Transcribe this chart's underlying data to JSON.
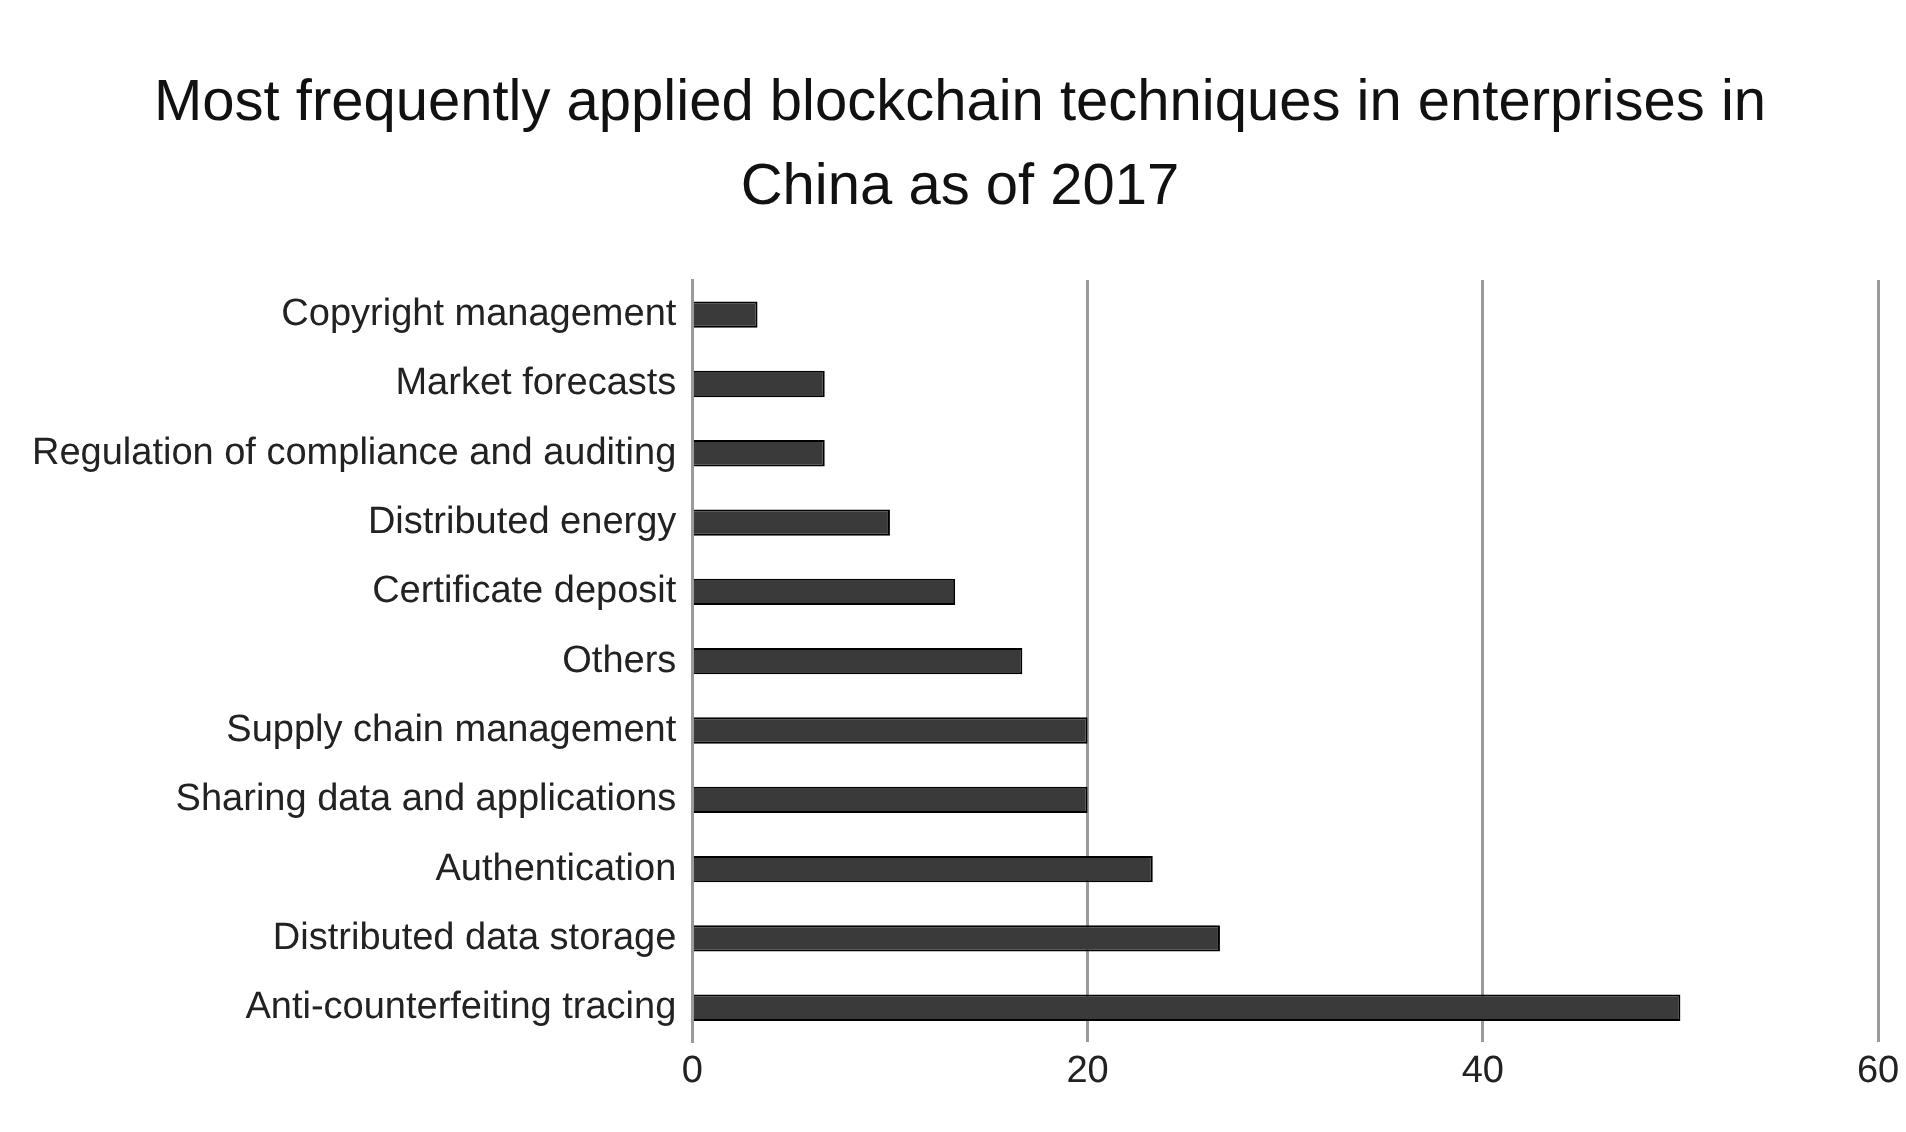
{
  "chart_data": {
    "type": "bar",
    "orientation": "horizontal",
    "title": "Most frequently applied blockchain techniques in enterprises in China as of 2017",
    "categories": [
      "Copyright management",
      "Market forecasts",
      "Regulation of compliance and auditing",
      "Distributed energy",
      "Certificate deposit",
      "Others",
      "Supply chain management",
      "Sharing data and applications",
      "Authentication",
      "Distributed data storage",
      "Anti-counterfeiting tracing"
    ],
    "values": [
      3.3,
      6.7,
      6.7,
      10,
      13.3,
      16.7,
      20,
      20,
      23.3,
      26.7,
      50
    ],
    "color": "#3a3a3a",
    "xlim": [
      0,
      60
    ],
    "xticks": [
      0,
      20,
      40,
      60
    ],
    "grid": "x"
  }
}
